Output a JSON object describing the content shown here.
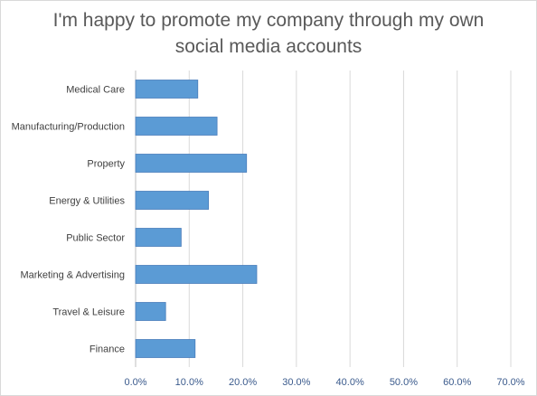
{
  "chart_data": {
    "type": "bar",
    "orientation": "horizontal",
    "title_lines": [
      "I'm happy to promote my company through my own",
      "social media accounts"
    ],
    "categories": [
      "Medical Care",
      "Manufacturing/Production",
      "Property",
      "Energy & Utilities",
      "Public Sector",
      "Marketing & Advertising",
      "Travel & Leisure",
      "Finance"
    ],
    "values": [
      11.6,
      15.2,
      20.7,
      13.6,
      8.5,
      22.6,
      5.6,
      11.1
    ],
    "xlim": [
      0,
      70
    ],
    "x_ticks": [
      "0.0%",
      "10.0%",
      "20.0%",
      "30.0%",
      "40.0%",
      "50.0%",
      "60.0%",
      "70.0%"
    ],
    "grid": "vertical",
    "legend": "none",
    "colors": {
      "bar_fill": "#5b9bd5",
      "bar_stroke": "#4a7ebb",
      "grid": "#d9d9d9",
      "title": "#595959",
      "x_tick": "#3a5a8c"
    }
  }
}
